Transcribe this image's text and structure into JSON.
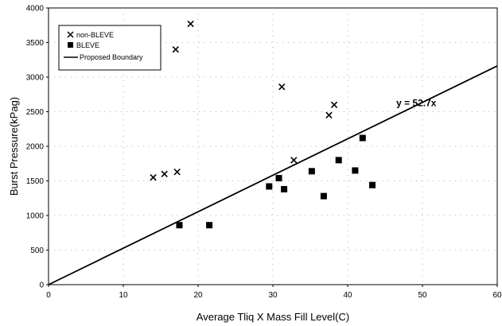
{
  "chart_data": {
    "type": "scatter",
    "title": "",
    "xlabel": "Average Tliq X Mass Fill Level(C)",
    "ylabel": "Burst Pressure(kPag)",
    "xlim": [
      0,
      60
    ],
    "ylim": [
      0,
      4000
    ],
    "x_ticks": [
      "0",
      "10",
      "20",
      "30",
      "40",
      "50",
      "60"
    ],
    "y_ticks": [
      "0",
      "500",
      "1000",
      "1500",
      "2000",
      "2500",
      "3000",
      "3500",
      "4000"
    ],
    "grid": "dotted horizontal and vertical",
    "legend_position": "top-left",
    "series": [
      {
        "name": "non-BLEVE",
        "marker": "x",
        "points": [
          [
            14.0,
            1550
          ],
          [
            15.5,
            1600
          ],
          [
            17.2,
            1630
          ],
          [
            17.0,
            3400
          ],
          [
            19.0,
            3770
          ],
          [
            31.2,
            2860
          ],
          [
            32.8,
            1800
          ],
          [
            37.5,
            2450
          ],
          [
            38.2,
            2600
          ]
        ]
      },
      {
        "name": "BLEVE",
        "marker": "square",
        "points": [
          [
            17.5,
            860
          ],
          [
            21.5,
            860
          ],
          [
            29.5,
            1420
          ],
          [
            30.8,
            1540
          ],
          [
            31.5,
            1380
          ],
          [
            35.2,
            1640
          ],
          [
            36.8,
            1280
          ],
          [
            38.8,
            1800
          ],
          [
            41.0,
            1650
          ],
          [
            42.0,
            2120
          ],
          [
            43.3,
            1440
          ]
        ]
      },
      {
        "name": "Proposed Boundary",
        "type": "line",
        "slope": 52.7,
        "x_range": [
          0,
          60
        ]
      }
    ],
    "annotations": [
      {
        "text": "y = 52.7x",
        "x": 46.5,
        "y": 2580
      }
    ]
  }
}
